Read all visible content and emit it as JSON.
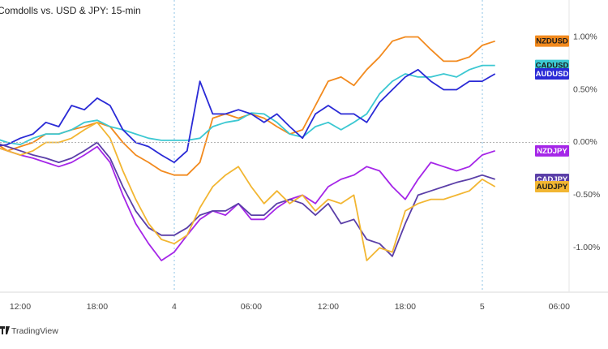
{
  "chart_data": {
    "type": "line",
    "title": "Comdolls vs. USD & JPY: 15-min",
    "source": "TradingView",
    "categories": [
      null,
      null,
      "12:00",
      null,
      null,
      null,
      null,
      null,
      "18:00",
      null,
      null,
      null,
      null,
      null,
      "4",
      null,
      null,
      null,
      null,
      null,
      "06:00",
      null,
      null,
      null,
      null,
      null,
      "12:00",
      null,
      null,
      null,
      null,
      null,
      "18:00",
      null,
      null,
      null,
      null,
      null,
      "5",
      null,
      null,
      null,
      null,
      null,
      "06:00",
      null
    ],
    "ylim": [
      -1.42,
      1.35
    ],
    "yticks": [
      {
        "value": -1,
        "label": "-1.00%"
      },
      {
        "value": -0.5,
        "label": "-0.50%"
      },
      {
        "value": 0,
        "label": "0.00%"
      },
      {
        "value": 0.5,
        "label": "0.50%"
      },
      {
        "value": 1,
        "label": "1.00%"
      }
    ],
    "series": [
      {
        "name": "NZDUSD",
        "color": "#f28a1e",
        "values": [
          0,
          -0.08,
          -0.04,
          0,
          0.08,
          0.08,
          0.12,
          0.15,
          0.19,
          0.15,
          0,
          -0.12,
          -0.19,
          -0.27,
          -0.31,
          -0.31,
          -0.19,
          0.23,
          0.27,
          0.23,
          0.27,
          0.23,
          0.15,
          0.08,
          0.12,
          0.35,
          0.58,
          0.62,
          0.54,
          0.69,
          0.81,
          0.96,
          1.0,
          1.0,
          0.88,
          0.77,
          0.77,
          0.81,
          0.92,
          0.96,
          null,
          null,
          null,
          null,
          null,
          null
        ]
      },
      {
        "name": "CADUSD",
        "color": "#3cc8d2",
        "values": [
          0.04,
          0,
          -0.02,
          0.04,
          0.08,
          0.08,
          0.12,
          0.19,
          0.21,
          0.15,
          0.12,
          0.08,
          0.04,
          0.02,
          0.02,
          0.02,
          0.04,
          0.15,
          0.19,
          0.21,
          0.28,
          0.27,
          0.19,
          0.08,
          0.05,
          0.15,
          0.19,
          0.12,
          0.19,
          0.27,
          0.46,
          0.58,
          0.65,
          0.62,
          0.62,
          0.65,
          0.62,
          0.69,
          0.73,
          0.73,
          null,
          null,
          null,
          null,
          null,
          null
        ]
      },
      {
        "name": "AUDUSD",
        "color": "#2a2ad6",
        "values": [
          -0.04,
          -0.02,
          0.04,
          0.08,
          0.19,
          0.15,
          0.35,
          0.31,
          0.42,
          0.35,
          0.12,
          0,
          -0.04,
          -0.12,
          -0.19,
          -0.08,
          0.58,
          0.27,
          0.27,
          0.31,
          0.27,
          0.19,
          0.27,
          0.15,
          0.04,
          0.27,
          0.35,
          0.27,
          0.27,
          0.19,
          0.38,
          0.5,
          0.62,
          0.69,
          0.58,
          0.5,
          0.5,
          0.58,
          0.58,
          0.65,
          null,
          null,
          null,
          null,
          null,
          null
        ]
      },
      {
        "name": "NZDJPY",
        "color": "#a526e8",
        "values": [
          -0.04,
          -0.08,
          -0.12,
          -0.15,
          -0.19,
          -0.23,
          -0.19,
          -0.12,
          -0.04,
          -0.19,
          -0.5,
          -0.77,
          -0.96,
          -1.12,
          -1.04,
          -0.88,
          -0.73,
          -0.65,
          -0.69,
          -0.58,
          -0.73,
          -0.73,
          -0.62,
          -0.54,
          -0.5,
          -0.58,
          -0.42,
          -0.35,
          -0.31,
          -0.23,
          -0.27,
          -0.42,
          -0.54,
          -0.35,
          -0.19,
          -0.23,
          -0.27,
          -0.23,
          -0.12,
          -0.08,
          null,
          null,
          null,
          null,
          null,
          null
        ]
      },
      {
        "name": "CADJPY",
        "color": "#5b3fa8",
        "values": [
          0,
          -0.04,
          -0.08,
          -0.12,
          -0.15,
          -0.19,
          -0.15,
          -0.08,
          0,
          -0.15,
          -0.42,
          -0.65,
          -0.81,
          -0.88,
          -0.88,
          -0.81,
          -0.69,
          -0.65,
          -0.65,
          -0.58,
          -0.69,
          -0.69,
          -0.58,
          -0.54,
          -0.58,
          -0.69,
          -0.58,
          -0.77,
          -0.73,
          -0.92,
          -0.96,
          -1.08,
          -0.77,
          -0.5,
          -0.46,
          -0.42,
          -0.38,
          -0.35,
          -0.31,
          -0.35,
          null,
          null,
          null,
          null,
          null,
          null
        ]
      },
      {
        "name": "AUDJPY",
        "color": "#f2b632",
        "values": [
          -0.04,
          -0.08,
          -0.12,
          -0.08,
          0,
          0,
          0.04,
          0.12,
          0.19,
          0.04,
          -0.27,
          -0.54,
          -0.77,
          -0.92,
          -0.96,
          -0.88,
          -0.62,
          -0.42,
          -0.31,
          -0.23,
          -0.42,
          -0.58,
          -0.46,
          -0.58,
          -0.5,
          -0.65,
          -0.54,
          -0.58,
          -0.5,
          -1.12,
          -1.0,
          -1.04,
          -0.65,
          -0.58,
          -0.54,
          -0.54,
          -0.5,
          -0.46,
          -0.35,
          -0.42,
          null,
          null,
          null,
          null,
          null,
          null
        ]
      }
    ]
  }
}
